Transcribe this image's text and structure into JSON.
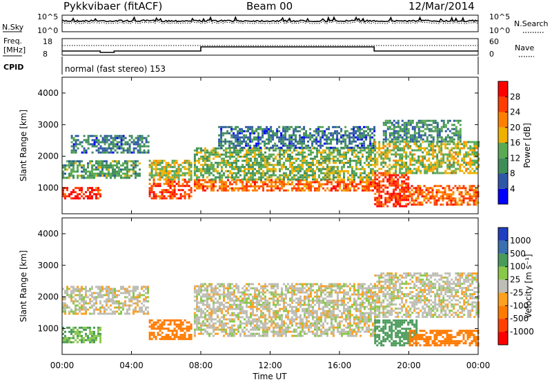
{
  "header": {
    "station": "Pykkvibaer (fitACF)",
    "beam": "Beam 00",
    "date": "12/Mar/2014"
  },
  "top_panels": {
    "nsky_label": "N.Sky",
    "nsearch_label": "N.Search",
    "noise_ticks_left": [
      "10^5",
      "10^0"
    ],
    "noise_ticks_right": [
      "10^5",
      "10^0"
    ],
    "freq_label_1": "Freq.",
    "freq_label_2": "[MHz]",
    "freq_ticks": [
      "18",
      "8"
    ],
    "nave_label": "Nave",
    "nave_ticks": [
      "60",
      "0"
    ],
    "cpid_label": "CPID",
    "cpid_text": "normal (fast stereo) 153"
  },
  "colors": {
    "power": [
      "#0000ff",
      "#2f57a8",
      "#3f8e5a",
      "#5aaa55",
      "#f0b000",
      "#ff8000",
      "#ff3d00",
      "#ff0000"
    ],
    "velocity": [
      "#2040c0",
      "#3a6fb0",
      "#4a9a5a",
      "#8ac84a",
      "#bebeb6",
      "#ffa020",
      "#ff7a00",
      "#ff4000",
      "#ff0000"
    ],
    "ground_scatter": "#bebeb6"
  },
  "chart_data": [
    {
      "type": "heatmap",
      "name": "power",
      "ylabel": "Slant Range [km]",
      "yticks": [
        "1000",
        "2000",
        "3000",
        "4000"
      ],
      "ylim": [
        180,
        4500
      ],
      "xlim": [
        0,
        24
      ],
      "xticks": [
        "00:00",
        "04:00",
        "08:00",
        "12:00",
        "16:00",
        "20:00",
        "00:00"
      ],
      "colorbar": {
        "label": "Power [dB]",
        "ticks": [
          "4",
          "8",
          "12",
          "16",
          "20",
          "24",
          "28"
        ],
        "range": [
          0,
          32
        ]
      },
      "bands": [
        {
          "t": [
            0,
            2.2
          ],
          "r": [
            700,
            1050
          ],
          "v": 28
        },
        {
          "t": [
            0,
            4.5
          ],
          "r": [
            1350,
            1900
          ],
          "v": 12
        },
        {
          "t": [
            0.5,
            5
          ],
          "r": [
            2150,
            2700
          ],
          "v": 8
        },
        {
          "t": [
            5,
            7.4
          ],
          "r": [
            700,
            1300
          ],
          "v": 26
        },
        {
          "t": [
            5,
            7.4
          ],
          "r": [
            1300,
            1900
          ],
          "v": 16
        },
        {
          "t": [
            7.6,
            18
          ],
          "r": [
            950,
            1300
          ],
          "v": 24
        },
        {
          "t": [
            7.6,
            18
          ],
          "r": [
            1300,
            2300
          ],
          "v": 14
        },
        {
          "t": [
            9,
            18
          ],
          "r": [
            2300,
            3000
          ],
          "v": 8
        },
        {
          "t": [
            18,
            20
          ],
          "r": [
            450,
            1500
          ],
          "v": 27
        },
        {
          "t": [
            18,
            24
          ],
          "r": [
            1500,
            2500
          ],
          "v": 16
        },
        {
          "t": [
            20,
            24
          ],
          "r": [
            500,
            1100
          ],
          "v": 24
        },
        {
          "t": [
            18.5,
            23
          ],
          "r": [
            2500,
            3200
          ],
          "v": 10
        }
      ]
    },
    {
      "type": "heatmap",
      "name": "velocity",
      "ylabel": "Slant Range [km]",
      "yticks": [
        "1000",
        "2000",
        "3000",
        "4000"
      ],
      "ylim": [
        180,
        4500
      ],
      "xlim": [
        0,
        24
      ],
      "xticks": [
        "00:00",
        "04:00",
        "08:00",
        "12:00",
        "16:00",
        "20:00",
        "00:00"
      ],
      "xlabel": "Time UT",
      "colorbar": {
        "label": "Velocity [m s⁻¹]",
        "ticks": [
          "1000",
          "500",
          "100",
          "25",
          "-25",
          "-100",
          "-500",
          "-1000"
        ]
      },
      "bands": [
        {
          "t": [
            0,
            2.2
          ],
          "r": [
            600,
            1100
          ],
          "v": 100
        },
        {
          "t": [
            0,
            5
          ],
          "r": [
            1500,
            2400
          ],
          "v": 0
        },
        {
          "t": [
            5,
            7.4
          ],
          "r": [
            700,
            1300
          ],
          "v": -300
        },
        {
          "t": [
            7.6,
            18
          ],
          "r": [
            800,
            2500
          ],
          "v": 0
        },
        {
          "t": [
            18,
            20.5
          ],
          "r": [
            500,
            1300
          ],
          "v": 200
        },
        {
          "t": [
            18,
            24
          ],
          "r": [
            1400,
            2800
          ],
          "v": 0
        },
        {
          "t": [
            20,
            24
          ],
          "r": [
            500,
            1000
          ],
          "v": -300
        }
      ]
    }
  ],
  "xaxis": {
    "ticks": [
      "00:00",
      "04:00",
      "08:00",
      "12:00",
      "16:00",
      "20:00",
      "00:00"
    ],
    "label": "Time UT"
  }
}
